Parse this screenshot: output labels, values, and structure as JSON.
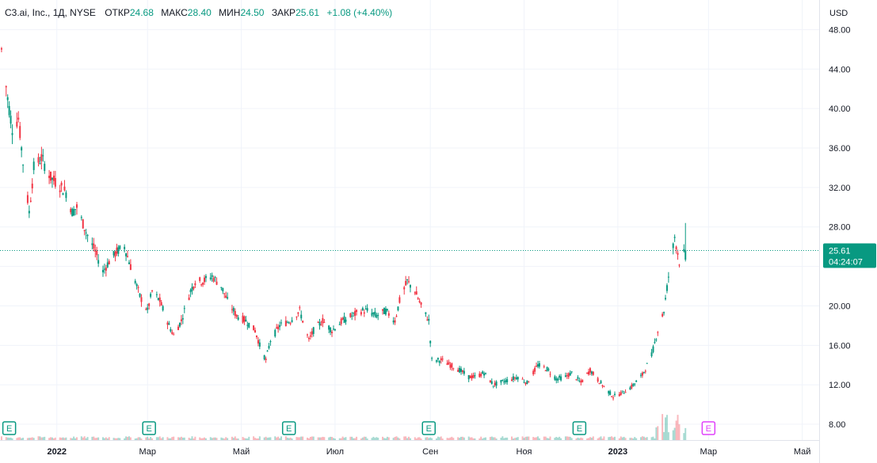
{
  "header": {
    "symbol": "C3.ai, Inc., 1Д, NYSE",
    "open_label": "ОТКР",
    "open_value": "24.68",
    "high_label": "МАКС",
    "high_value": "28.40",
    "low_label": "МИН",
    "low_value": "24.50",
    "close_label": "ЗАКР",
    "close_value": "25.61",
    "change": "+1.08 (+4.40%)"
  },
  "price_scale": {
    "currency": "USD",
    "last_price": "25.61",
    "countdown": "04:24:07"
  },
  "colors": {
    "up": "#089981",
    "down": "#f23645",
    "grid": "#f0f3fa",
    "text": "#131722",
    "earnings": "#089981",
    "earnings_future": "#e040fb"
  },
  "earnings_markers": [
    {
      "date": "2021-12-01",
      "label": "E",
      "future": false
    },
    {
      "date": "2022-03-02",
      "label": "E",
      "future": false
    },
    {
      "date": "2022-06-01",
      "label": "E",
      "future": false
    },
    {
      "date": "2022-08-31",
      "label": "E",
      "future": false
    },
    {
      "date": "2022-12-07",
      "label": "E",
      "future": false
    },
    {
      "date": "2023-03-01",
      "label": "E",
      "future": true
    }
  ],
  "chart_data": {
    "type": "candlestick",
    "x_type": "date",
    "xlim": [
      "2021-11-25",
      "2023-05-12"
    ],
    "ylim": [
      6.4,
      51.0
    ],
    "yticks": [
      8,
      12,
      16,
      20,
      24,
      28,
      32,
      36,
      40,
      44,
      48
    ],
    "ytick_labels": [
      "8.00",
      "12.00",
      "16.00",
      "20.00",
      "",
      "28.00",
      "32.00",
      "36.00",
      "40.00",
      "44.00",
      "48.00"
    ],
    "xticks": [
      {
        "date": "2022-01-01",
        "label": "2022",
        "bold": true
      },
      {
        "date": "2022-03-01",
        "label": "Мар",
        "bold": false
      },
      {
        "date": "2022-05-01",
        "label": "Май",
        "bold": false
      },
      {
        "date": "2022-07-01",
        "label": "Июл",
        "bold": false
      },
      {
        "date": "2022-09-01",
        "label": "Сен",
        "bold": false
      },
      {
        "date": "2022-11-01",
        "label": "Ноя",
        "bold": false
      },
      {
        "date": "2023-01-01",
        "label": "2023",
        "bold": true
      },
      {
        "date": "2023-03-01",
        "label": "Мар",
        "bold": false
      },
      {
        "date": "2023-05-01",
        "label": "Май",
        "bold": false
      }
    ],
    "last_price": 25.61,
    "close_anchors": [
      [
        "2021-11-26",
        46.0
      ],
      [
        "2021-11-30",
        41.0
      ],
      [
        "2021-12-03",
        38.0
      ],
      [
        "2021-12-07",
        39.0
      ],
      [
        "2021-12-10",
        34.5
      ],
      [
        "2021-12-14",
        29.5
      ],
      [
        "2021-12-17",
        34.0
      ],
      [
        "2021-12-22",
        35.0
      ],
      [
        "2021-12-28",
        33.0
      ],
      [
        "2022-01-04",
        32.0
      ],
      [
        "2022-01-07",
        31.5
      ],
      [
        "2022-01-11",
        29.5
      ],
      [
        "2022-01-14",
        30.0
      ],
      [
        "2022-01-20",
        27.5
      ],
      [
        "2022-01-26",
        25.5
      ],
      [
        "2022-01-31",
        23.5
      ],
      [
        "2022-02-04",
        24.5
      ],
      [
        "2022-02-09",
        25.5
      ],
      [
        "2022-02-14",
        26.0
      ],
      [
        "2022-02-18",
        24.0
      ],
      [
        "2022-02-24",
        21.0
      ],
      [
        "2022-03-01",
        19.5
      ],
      [
        "2022-03-04",
        21.5
      ],
      [
        "2022-03-09",
        20.5
      ],
      [
        "2022-03-15",
        18.0
      ],
      [
        "2022-03-18",
        17.0
      ],
      [
        "2022-03-23",
        18.5
      ],
      [
        "2022-03-29",
        21.5
      ],
      [
        "2022-04-01",
        22.5
      ],
      [
        "2022-04-06",
        22.5
      ],
      [
        "2022-04-12",
        23.0
      ],
      [
        "2022-04-18",
        22.0
      ],
      [
        "2022-04-22",
        20.5
      ],
      [
        "2022-04-28",
        19.0
      ],
      [
        "2022-05-04",
        18.5
      ],
      [
        "2022-05-10",
        17.5
      ],
      [
        "2022-05-13",
        16.0
      ],
      [
        "2022-05-17",
        14.5
      ],
      [
        "2022-05-20",
        16.5
      ],
      [
        "2022-05-26",
        18.0
      ],
      [
        "2022-06-02",
        18.5
      ],
      [
        "2022-06-08",
        19.5
      ],
      [
        "2022-06-14",
        16.5
      ],
      [
        "2022-06-17",
        17.5
      ],
      [
        "2022-06-23",
        18.5
      ],
      [
        "2022-06-29",
        17.5
      ],
      [
        "2022-07-06",
        18.5
      ],
      [
        "2022-07-12",
        19.0
      ],
      [
        "2022-07-18",
        19.5
      ],
      [
        "2022-07-22",
        19.5
      ],
      [
        "2022-07-28",
        19.0
      ],
      [
        "2022-08-03",
        19.5
      ],
      [
        "2022-08-09",
        18.5
      ],
      [
        "2022-08-12",
        20.5
      ],
      [
        "2022-08-17",
        22.5
      ],
      [
        "2022-08-22",
        21.5
      ],
      [
        "2022-08-26",
        20.0
      ],
      [
        "2022-08-31",
        18.5
      ],
      [
        "2022-09-02",
        14.5
      ],
      [
        "2022-09-08",
        14.5
      ],
      [
        "2022-09-14",
        14.0
      ],
      [
        "2022-09-20",
        13.5
      ],
      [
        "2022-09-26",
        12.8
      ],
      [
        "2022-09-30",
        12.8
      ],
      [
        "2022-10-06",
        13.2
      ],
      [
        "2022-10-12",
        12.0
      ],
      [
        "2022-10-18",
        12.3
      ],
      [
        "2022-10-24",
        12.6
      ],
      [
        "2022-10-28",
        12.8
      ],
      [
        "2022-11-03",
        12.2
      ],
      [
        "2022-11-10",
        14.0
      ],
      [
        "2022-11-16",
        13.6
      ],
      [
        "2022-11-22",
        12.6
      ],
      [
        "2022-11-28",
        12.8
      ],
      [
        "2022-12-02",
        13.2
      ],
      [
        "2022-12-08",
        12.2
      ],
      [
        "2022-12-14",
        13.5
      ],
      [
        "2022-12-19",
        12.5
      ],
      [
        "2022-12-23",
        11.8
      ],
      [
        "2022-12-29",
        10.8
      ],
      [
        "2023-01-04",
        11.2
      ],
      [
        "2023-01-10",
        11.8
      ],
      [
        "2023-01-17",
        13.0
      ],
      [
        "2023-01-23",
        15.0
      ],
      [
        "2023-01-27",
        17.5
      ],
      [
        "2023-01-31",
        19.5
      ],
      [
        "2023-02-03",
        23.0
      ],
      [
        "2023-02-07",
        27.0
      ],
      [
        "2023-02-10",
        24.5
      ],
      [
        "2023-02-14",
        25.61
      ]
    ]
  }
}
